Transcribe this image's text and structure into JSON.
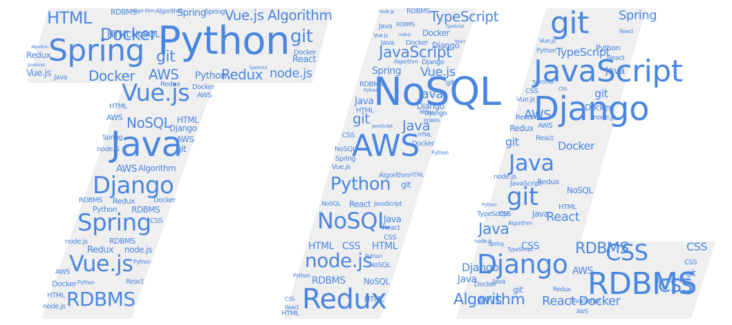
{
  "palette": {
    "word_color": "#4a86e0",
    "shape_color": "#efefef",
    "background": "#ffffff"
  },
  "words": [
    "HTML",
    "RDBMS",
    "Algor ithm",
    "Algorithm",
    "Spring",
    "Spring",
    "Vue.js",
    "Algorithm",
    "Docker",
    "Python",
    "git",
    "Spring",
    "HTML",
    "NoSQL",
    "Algorithm",
    "Redux",
    "JavaScript",
    "Vue.js",
    "git",
    "Docker",
    "React",
    "Java",
    "Docker",
    "AWS",
    "node.js",
    "Python",
    "Redux",
    "TypeScript",
    "Vue.js",
    "Redux",
    "Docker",
    "AWS",
    "HTML",
    "AWS",
    "NoSQL",
    "HTML",
    "Django",
    "Java",
    "Spring",
    "AWS",
    "git",
    "node.js",
    "AWS",
    "Algorithm",
    "Django",
    "RDBMS",
    "Redux",
    "Docker",
    "Python",
    "RDBMS",
    "CSS",
    "Spring",
    "node.js",
    "RDBMS",
    "Redux",
    "node.js",
    "Vue.js",
    "AWS",
    "Python",
    "Docker",
    "Python",
    "React",
    "HTML",
    "node.js",
    "RDBMS",
    "node.js",
    "RDBMS",
    "TypeScript",
    "Java",
    "RDBMS",
    "Docker",
    "TypeScript",
    "Vue.js",
    "node.js",
    "Java",
    "Docker",
    "React",
    "Django",
    "JavaScript",
    "Spring",
    "Algorithm",
    "Django",
    "Vue.js",
    "RDBMS",
    "Python",
    "git",
    "NoSQL",
    "Java",
    "Java",
    "Django",
    "Django",
    "HTML",
    "Redux",
    "RDBMS",
    "git",
    "JavaScript",
    "Java",
    "AWS",
    "CSS",
    "HTML",
    "NoSQL",
    "Docker",
    "Spring",
    "Vue.js",
    "Python",
    "Python",
    "Algorithm",
    "HTML",
    "git",
    "NoSQL",
    "React",
    "JavaScript",
    "Java",
    "NoSQL",
    "React",
    "CSS",
    "HTML",
    "CSS",
    "HTML",
    "Python",
    "node.js",
    "NoSQL",
    "Python",
    "RDBMS",
    "NoSQL",
    "CSS",
    "HTML",
    "React",
    "Redux",
    "HTML",
    "git",
    "Spring",
    "React",
    "Vue.js",
    "Python",
    "TypeScript",
    "Python",
    "React",
    "JavaScript",
    "TypeScript",
    "CSS",
    "git",
    "Java",
    "CSS",
    "Django",
    "Vue.js",
    "Docker",
    "node.js",
    "AWS",
    "Redux",
    "React",
    "git",
    "AWS",
    "React",
    "Docker",
    "Java",
    "node.js",
    "JavaScript",
    "Redux",
    "git",
    "NoSQL",
    "Python",
    "HTML",
    "TypeScript",
    "CSS",
    "Java",
    "React",
    "Algorithm",
    "Java",
    "node.js",
    "Spring",
    "TypeScript",
    "CSS",
    "RDBMS",
    "CSS",
    "CSS",
    "Django",
    "Django",
    "CSS",
    "git",
    "AWS",
    "Java",
    "Docker",
    "Java",
    "RDBMS",
    "git",
    "CSS",
    "JavaScript",
    "Algorithm",
    "AWS",
    "Redux",
    "React Docker",
    "JavaScript",
    "AWS"
  ]
}
